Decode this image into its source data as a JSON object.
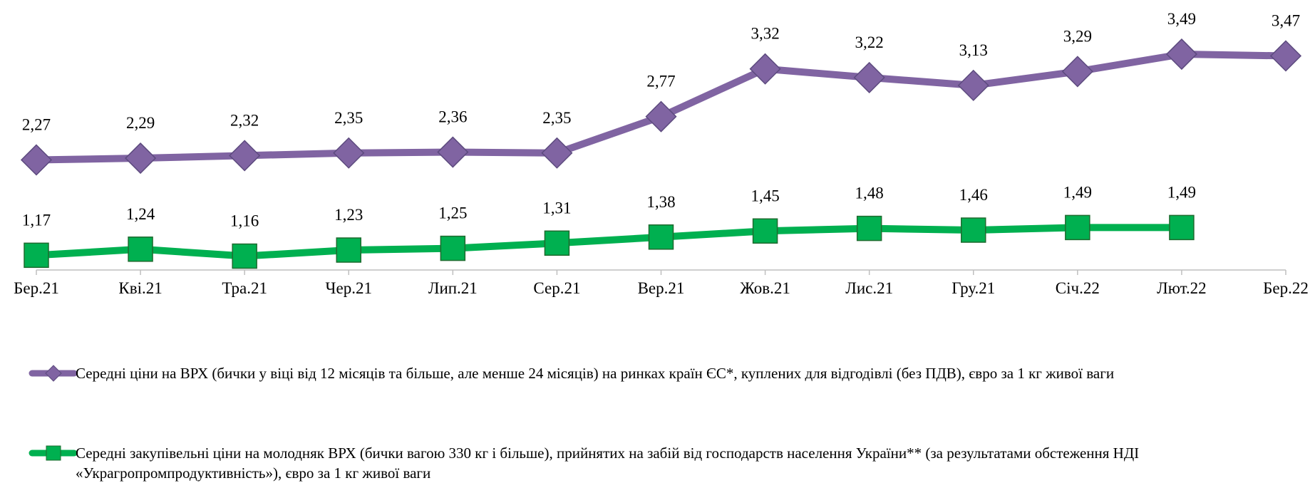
{
  "chart_data": {
    "type": "line",
    "categories": [
      "Бер.21",
      "Кві.21",
      "Тра.21",
      "Чер.21",
      "Лип.21",
      "Сер.21",
      "Вер.21",
      "Жов.21",
      "Лис.21",
      "Гру.21",
      "Січ.22",
      "Лют.22",
      "Бер.22"
    ],
    "series": [
      {
        "name": "Середні ціни на ВРХ (бички у віці від 12 місяців та більше, але менше 24 місяців) на ринках країн ЄС*, куплених для відгодівлі (без ПДВ), євро за 1 кг живої ваги",
        "color": "#8064a2",
        "marker": "diamond",
        "values": [
          2.27,
          2.29,
          2.32,
          2.35,
          2.36,
          2.35,
          2.77,
          3.32,
          3.22,
          3.13,
          3.29,
          3.49,
          3.47
        ],
        "value_labels": [
          "2,27",
          "2,29",
          "2,32",
          "2,35",
          "2,36",
          "2,35",
          "2,77",
          "3,32",
          "3,22",
          "3,13",
          "3,29",
          "3,49",
          "3,47"
        ]
      },
      {
        "name": "Середні закупівельні ціни на молодняк ВРХ (бички вагою 330 кг і більше), прийнятих на забій від господарств населення України** (за результатами обстеження НДІ «Украгропромпродуктивність»), євро за 1 кг живої ваги",
        "color": "#00b050",
        "marker": "square",
        "values": [
          1.17,
          1.24,
          1.16,
          1.23,
          1.25,
          1.31,
          1.38,
          1.45,
          1.48,
          1.46,
          1.49,
          1.49,
          null
        ],
        "value_labels": [
          "1,17",
          "1,24",
          "1,16",
          "1,23",
          "1,25",
          "1,31",
          "1,38",
          "1,45",
          "1,48",
          "1,46",
          "1,49",
          "1,49",
          null
        ]
      }
    ],
    "ylim": [
      1,
      4
    ],
    "legend": "bottom"
  }
}
